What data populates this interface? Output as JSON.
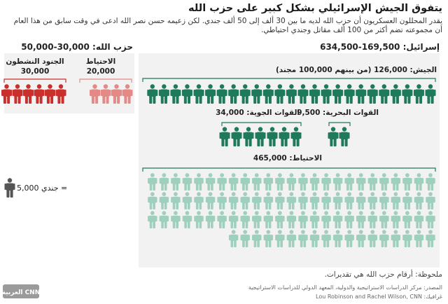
{
  "header": {
    "title": "يتفوق الجيش الإسرائيلي بشكل كبير على حزب الله",
    "subtitle": "يقدر المحللون العسكريون أن حزب الله لديه ما بين 30 ألف إلى 50 ألف جندي. لكن زعيمه حسن نصر الله ادعى في وقت سابق من هذا العام أن مجموعته تضم أكثر من 100 ألف مقاتل وجندي احتياطي."
  },
  "chart_data": {
    "type": "pictogram",
    "unit": {
      "label": "5,000 جندي =",
      "value": 5000
    },
    "groups": [
      {
        "side": "israel",
        "side_label": "إسرائيل: 169,500-634,500",
        "name": "الجيش: 126,000 (من بينهم 100,000 مجند)",
        "value": 126000,
        "icons": 25,
        "color": "#1f7a5c"
      },
      {
        "side": "israel",
        "name": "القوات الجوية: 34,000",
        "value": 34000,
        "icons": 7,
        "color": "#1f7a5c"
      },
      {
        "side": "israel",
        "name": "القوات البحرية: 9,500",
        "value": 9500,
        "icons": 2,
        "color": "#1f7a5c"
      },
      {
        "side": "israel",
        "name": "الاحتياط: 465,000",
        "value": 465000,
        "icons": 93,
        "color": "#9fcfbd"
      },
      {
        "side": "hezbollah",
        "side_label": "حزب الله: 30,000-50,000",
        "name": "الجنود النشطون",
        "value_label": "30,000",
        "value": 30000,
        "icons": 6,
        "color": "#c9302c"
      },
      {
        "side": "hezbollah",
        "name": "الاحتياط",
        "value_label": "20,000",
        "value": 20000,
        "icons": 4,
        "color": "#e38a86"
      }
    ]
  },
  "colors": {
    "unit_icon": "#555555",
    "bracket": "#1f7a5c",
    "bracket_hz": "#c9302c",
    "bracket_hz_res": "#e38a86"
  },
  "footer": {
    "note": "ملحوظة: أرقام حزب الله هي تقديرات.",
    "source": "المصدر: مركز الدراسات الاستراتيجية والدولية، المعهد الدولي للدراسات الاستراتيجية",
    "credit": "غرافيك: Lou Robinson and Rachel Wilson, CNN",
    "logo": "CNN العربية"
  }
}
